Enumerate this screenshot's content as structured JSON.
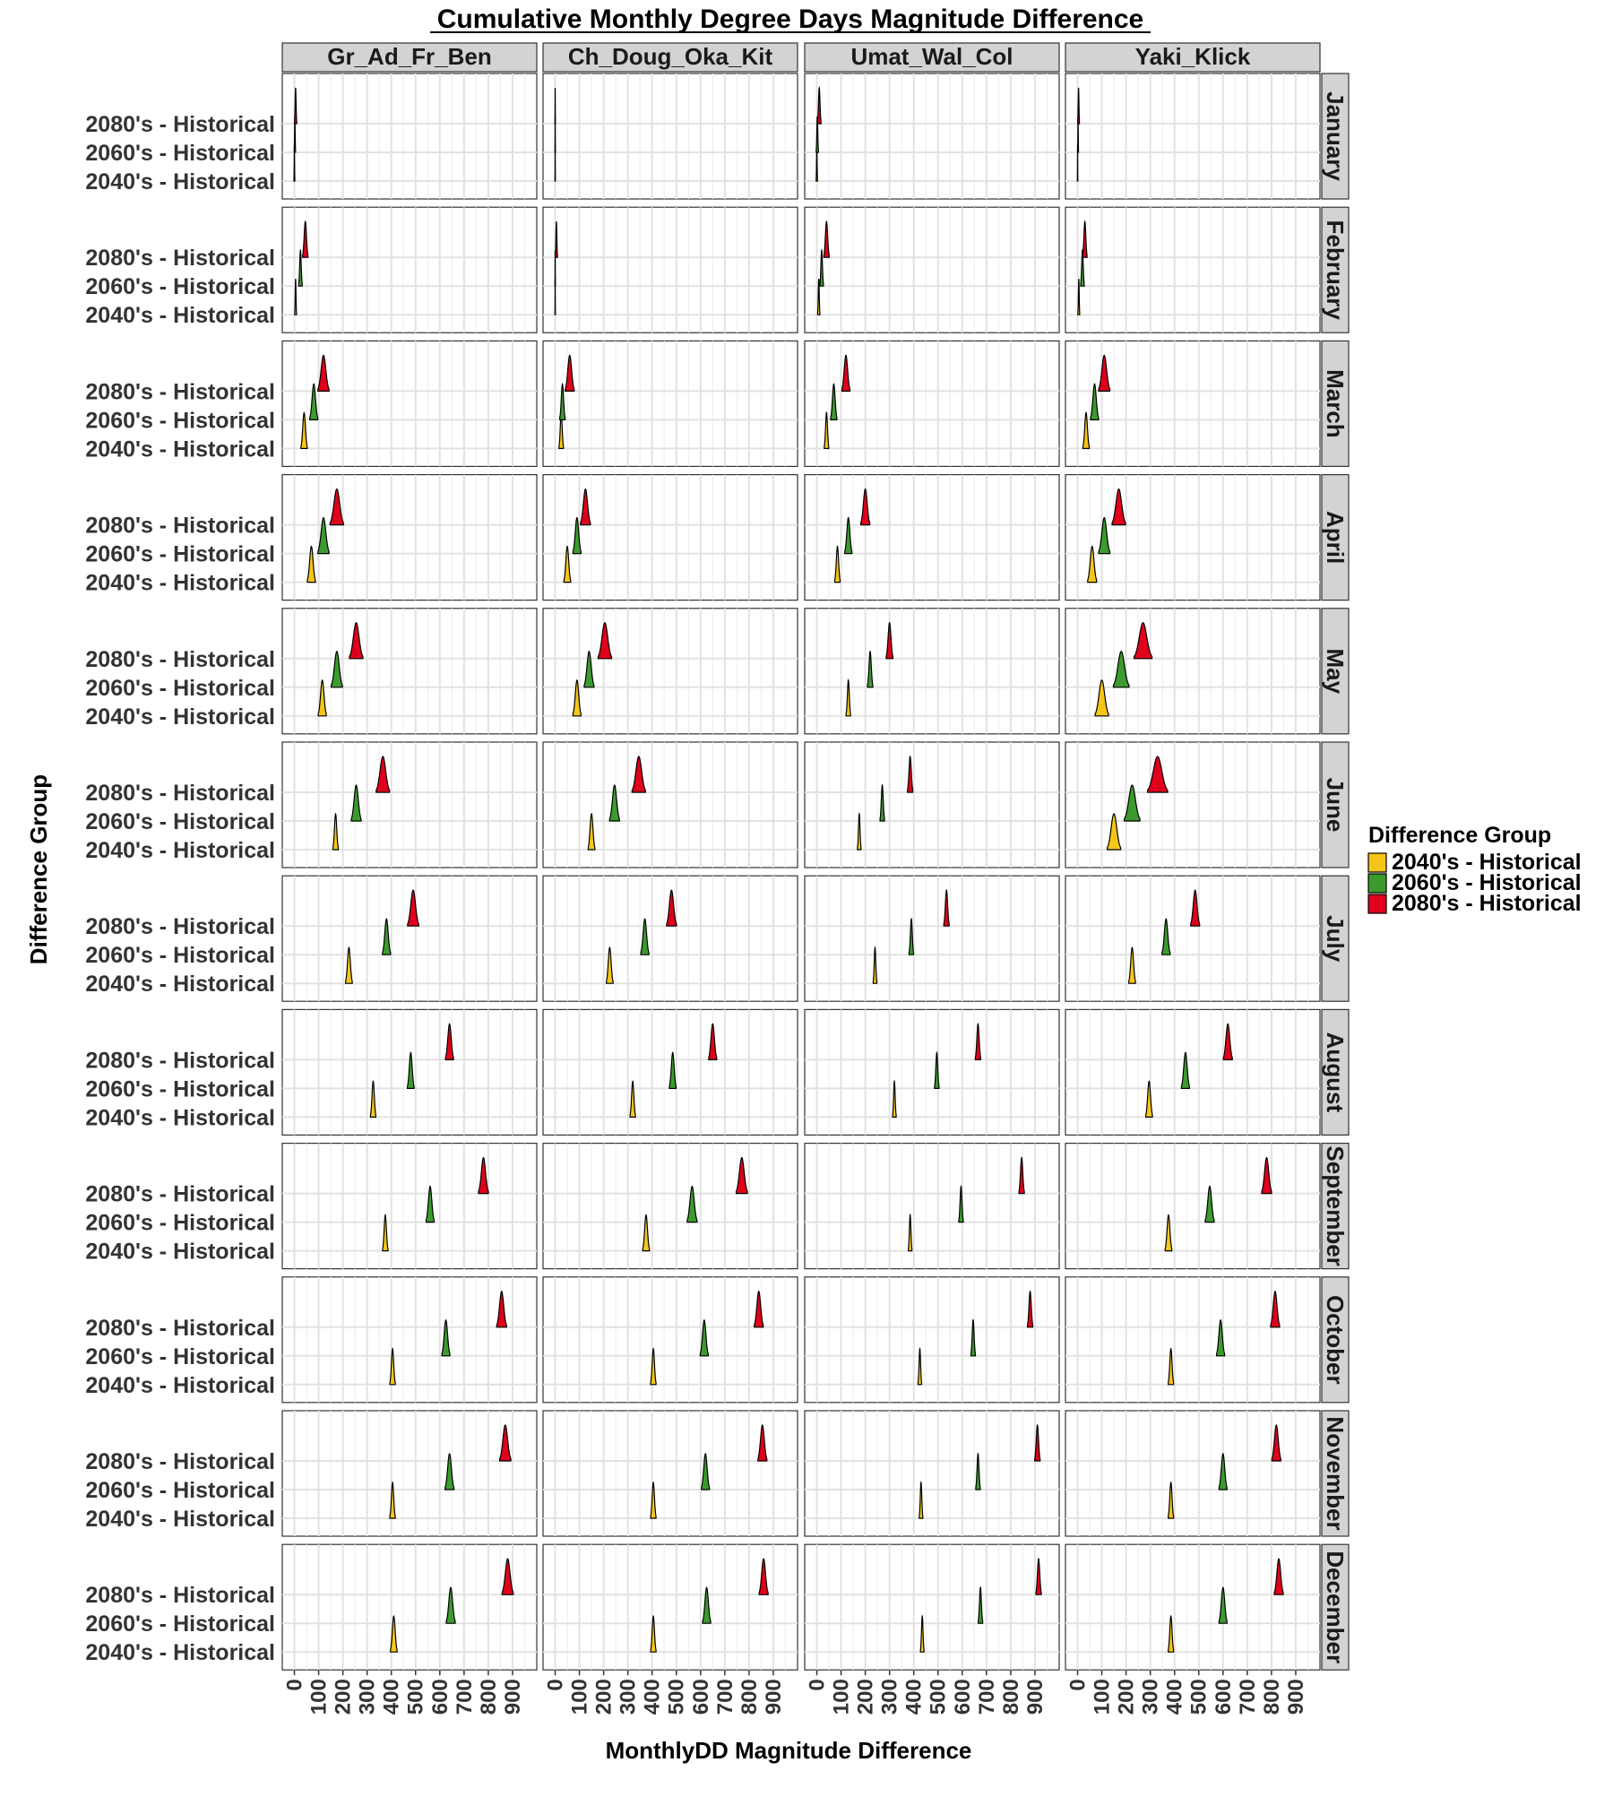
{
  "chart_data": {
    "type": "ridgeline-density",
    "title": "Cumulative Monthly Degree Days Magnitude Difference",
    "xlabel": "MonthlyDD Magnitude Difference",
    "ylabel": "Difference Group",
    "xlim": [
      -50,
      1000
    ],
    "x_ticks": [
      0,
      100,
      200,
      300,
      400,
      500,
      600,
      700,
      800,
      900
    ],
    "grid": true,
    "legend": {
      "title": "Difference Group",
      "position": "right",
      "entries": [
        {
          "name": "2040's - Historical",
          "color": "#f5c518"
        },
        {
          "name": "2060's - Historical",
          "color": "#3c9a2e"
        },
        {
          "name": "2080's - Historical",
          "color": "#e0001b"
        }
      ]
    },
    "y_categories": [
      "2080's - Historical",
      "2060's - Historical",
      "2040's - Historical"
    ],
    "column_facets": [
      "Gr_Ad_Fr_Ben",
      "Ch_Doug_Oka_Kit",
      "Umat_Wal_Col",
      "Yaki_Klick"
    ],
    "row_facets": [
      "January",
      "February",
      "March",
      "April",
      "May",
      "June",
      "July",
      "August",
      "September",
      "October",
      "November",
      "December"
    ],
    "density_peaks": [
      {
        "month": "January",
        "values": [
          [
            [
              0,
              2
            ],
            [
              2,
              3
            ],
            [
              5,
              5
            ]
          ],
          [
            [
              0,
              1
            ],
            [
              0,
              1
            ],
            [
              0,
              1
            ]
          ],
          [
            [
              0,
              3
            ],
            [
              2,
              5
            ],
            [
              10,
              8
            ]
          ],
          [
            [
              0,
              1
            ],
            [
              2,
              2
            ],
            [
              4,
              4
            ]
          ]
        ]
      },
      {
        "month": "February",
        "values": [
          [
            [
              5,
              4
            ],
            [
              25,
              8
            ],
            [
              45,
              12
            ]
          ],
          [
            [
              0,
              1
            ],
            [
              0,
              1
            ],
            [
              5,
              5
            ]
          ],
          [
            [
              8,
              5
            ],
            [
              20,
              8
            ],
            [
              40,
              12
            ]
          ],
          [
            [
              5,
              4
            ],
            [
              20,
              8
            ],
            [
              30,
              10
            ]
          ]
        ]
      },
      {
        "month": "March",
        "values": [
          [
            [
              40,
              14
            ],
            [
              80,
              18
            ],
            [
              120,
              25
            ]
          ],
          [
            [
              25,
              10
            ],
            [
              30,
              12
            ],
            [
              60,
              20
            ]
          ],
          [
            [
              40,
              10
            ],
            [
              70,
              14
            ],
            [
              120,
              18
            ]
          ],
          [
            [
              35,
              14
            ],
            [
              70,
              18
            ],
            [
              110,
              25
            ]
          ]
        ]
      },
      {
        "month": "April",
        "values": [
          [
            [
              70,
              18
            ],
            [
              120,
              25
            ],
            [
              175,
              30
            ]
          ],
          [
            [
              50,
              15
            ],
            [
              90,
              18
            ],
            [
              125,
              22
            ]
          ],
          [
            [
              85,
              12
            ],
            [
              130,
              16
            ],
            [
              200,
              20
            ]
          ],
          [
            [
              60,
              20
            ],
            [
              110,
              25
            ],
            [
              170,
              30
            ]
          ]
        ]
      },
      {
        "month": "May",
        "values": [
          [
            [
              115,
              18
            ],
            [
              175,
              25
            ],
            [
              255,
              30
            ]
          ],
          [
            [
              90,
              18
            ],
            [
              140,
              22
            ],
            [
              205,
              30
            ]
          ],
          [
            [
              130,
              10
            ],
            [
              220,
              12
            ],
            [
              300,
              15
            ]
          ],
          [
            [
              100,
              30
            ],
            [
              180,
              35
            ],
            [
              270,
              40
            ]
          ]
        ]
      },
      {
        "month": "June",
        "values": [
          [
            [
              170,
              12
            ],
            [
              255,
              22
            ],
            [
              365,
              30
            ]
          ],
          [
            [
              150,
              15
            ],
            [
              245,
              22
            ],
            [
              345,
              30
            ]
          ],
          [
            [
              175,
              8
            ],
            [
              270,
              10
            ],
            [
              385,
              12
            ]
          ],
          [
            [
              150,
              30
            ],
            [
              225,
              35
            ],
            [
              330,
              45
            ]
          ]
        ]
      },
      {
        "month": "July",
        "values": [
          [
            [
              225,
              15
            ],
            [
              380,
              18
            ],
            [
              490,
              25
            ]
          ],
          [
            [
              225,
              15
            ],
            [
              370,
              18
            ],
            [
              480,
              22
            ]
          ],
          [
            [
              240,
              8
            ],
            [
              390,
              10
            ],
            [
              535,
              12
            ]
          ],
          [
            [
              225,
              15
            ],
            [
              365,
              18
            ],
            [
              485,
              20
            ]
          ]
        ]
      },
      {
        "month": "August",
        "values": [
          [
            [
              325,
              12
            ],
            [
              480,
              15
            ],
            [
              640,
              18
            ]
          ],
          [
            [
              320,
              12
            ],
            [
              485,
              15
            ],
            [
              650,
              18
            ]
          ],
          [
            [
              320,
              8
            ],
            [
              495,
              10
            ],
            [
              665,
              12
            ]
          ],
          [
            [
              295,
              15
            ],
            [
              445,
              18
            ],
            [
              620,
              20
            ]
          ]
        ]
      },
      {
        "month": "September",
        "values": [
          [
            [
              375,
              12
            ],
            [
              560,
              18
            ],
            [
              780,
              22
            ]
          ],
          [
            [
              375,
              15
            ],
            [
              565,
              22
            ],
            [
              770,
              25
            ]
          ],
          [
            [
              385,
              8
            ],
            [
              595,
              10
            ],
            [
              845,
              12
            ]
          ],
          [
            [
              375,
              15
            ],
            [
              545,
              20
            ],
            [
              780,
              22
            ]
          ]
        ]
      },
      {
        "month": "October",
        "values": [
          [
            [
              405,
              12
            ],
            [
              625,
              18
            ],
            [
              855,
              22
            ]
          ],
          [
            [
              405,
              12
            ],
            [
              615,
              18
            ],
            [
              840,
              20
            ]
          ],
          [
            [
              425,
              8
            ],
            [
              645,
              10
            ],
            [
              880,
              12
            ]
          ],
          [
            [
              385,
              12
            ],
            [
              590,
              18
            ],
            [
              815,
              20
            ]
          ]
        ]
      },
      {
        "month": "November",
        "values": [
          [
            [
              405,
              12
            ],
            [
              640,
              20
            ],
            [
              870,
              25
            ]
          ],
          [
            [
              405,
              12
            ],
            [
              620,
              18
            ],
            [
              855,
              20
            ]
          ],
          [
            [
              430,
              8
            ],
            [
              665,
              10
            ],
            [
              910,
              12
            ]
          ],
          [
            [
              385,
              12
            ],
            [
              600,
              18
            ],
            [
              820,
              20
            ]
          ]
        ]
      },
      {
        "month": "December",
        "values": [
          [
            [
              410,
              15
            ],
            [
              645,
              20
            ],
            [
              880,
              25
            ]
          ],
          [
            [
              405,
              12
            ],
            [
              625,
              18
            ],
            [
              860,
              20
            ]
          ],
          [
            [
              435,
              8
            ],
            [
              675,
              10
            ],
            [
              915,
              12
            ]
          ],
          [
            [
              385,
              12
            ],
            [
              600,
              18
            ],
            [
              830,
              20
            ]
          ]
        ]
      }
    ]
  }
}
